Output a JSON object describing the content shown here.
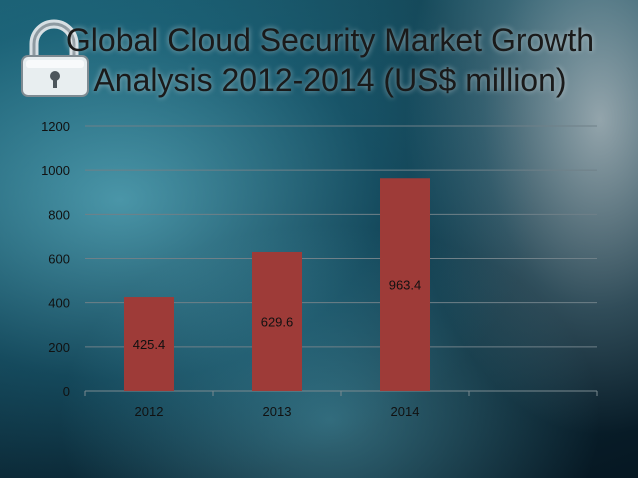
{
  "chart_data": {
    "type": "bar",
    "title": "Global Cloud Security Market Growth Analysis 2012-2014 (US$ million)",
    "categories": [
      "2012",
      "2013",
      "2014"
    ],
    "values": [
      425.4,
      629.6,
      963.4
    ],
    "data_labels": [
      "425.4",
      "629.6",
      "963.4"
    ],
    "ylim": [
      0,
      1200
    ],
    "yticks": [
      0,
      200,
      400,
      600,
      800,
      1000,
      1200
    ],
    "grid": true,
    "legend": "none",
    "bar_color": "#9e3b38"
  },
  "decor": {
    "icon": "padlock-icon"
  }
}
